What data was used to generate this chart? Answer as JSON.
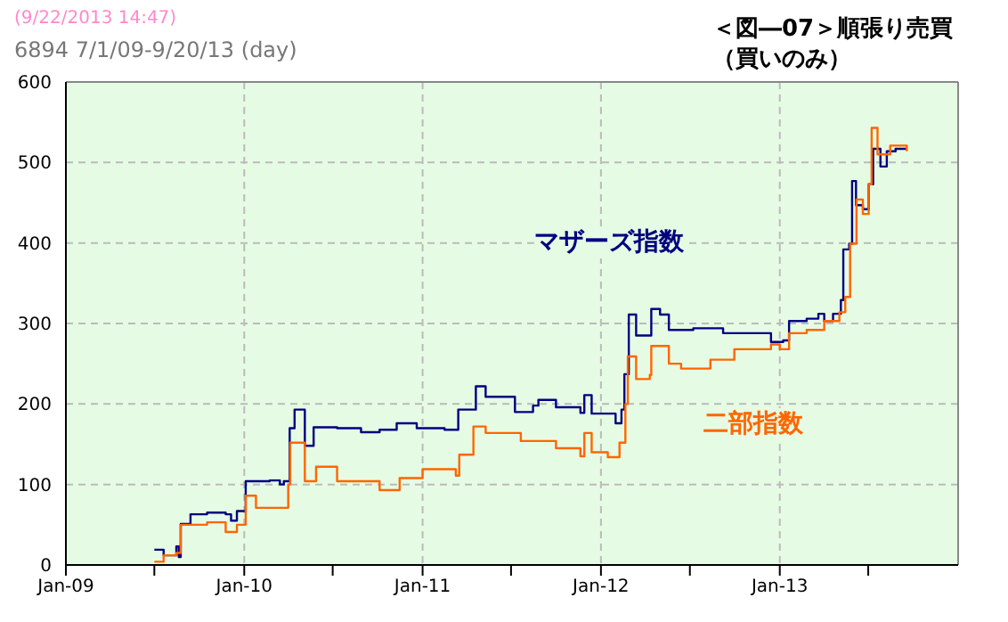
{
  "chart_data": {
    "type": "step",
    "title": "6894 7/1/09-9/20/13 (day)",
    "subtitle": "(9/22/2013 14:47)",
    "annotations": [
      "＜図―07＞順張り売買（買いのみ）"
    ],
    "series": [
      {
        "name": "マザーズ指数",
        "color": "#000080",
        "x": [
          "2009-07-01",
          "2009-07-20",
          "2009-08-15",
          "2009-08-20",
          "2009-08-24",
          "2009-09-13",
          "2009-10-17",
          "2009-11-24",
          "2009-12-05",
          "2009-12-17",
          "2010-01-04",
          "2010-02-22",
          "2010-03-15",
          "2010-03-23",
          "2010-04-04",
          "2010-04-14",
          "2010-05-05",
          "2010-05-23",
          "2010-07-10",
          "2010-08-28",
          "2010-10-05",
          "2010-11-09",
          "2010-12-20",
          "2011-02-15",
          "2011-03-15",
          "2011-04-14",
          "2011-04-20",
          "2011-05-10",
          "2011-07-09",
          "2011-08-15",
          "2011-08-26",
          "2011-10-01",
          "2011-11-20",
          "2011-11-28",
          "2011-12-13",
          "2012-01-31",
          "2012-02-12",
          "2012-02-18",
          "2012-02-27",
          "2012-03-13",
          "2012-04-13",
          "2012-05-01",
          "2012-05-19",
          "2012-07-08",
          "2012-09-07",
          "2012-12-14",
          "2013-01-08",
          "2013-01-20",
          "2013-02-25",
          "2013-03-21",
          "2013-04-02",
          "2013-04-20",
          "2013-05-06",
          "2013-05-11",
          "2013-05-23",
          "2013-05-29",
          "2013-06-06",
          "2013-06-20",
          "2013-07-02",
          "2013-07-11",
          "2013-07-26",
          "2013-08-08",
          "2013-08-26",
          "2013-09-18"
        ],
        "values": [
          19,
          12,
          23,
          10,
          51,
          63,
          65,
          63,
          55,
          67,
          104,
          105,
          100,
          104,
          170,
          193,
          148,
          171,
          170,
          165,
          168,
          176,
          170,
          168,
          193,
          193,
          222,
          209,
          190,
          198,
          205,
          196,
          189,
          211,
          188,
          176,
          193,
          237,
          311,
          285,
          318,
          311,
          292,
          294,
          288,
          277,
          279,
          303,
          306,
          312,
          303,
          312,
          329,
          392,
          399,
          477,
          447,
          442,
          473,
          517,
          495,
          514,
          517,
          517
        ]
      },
      {
        "name": "二部指数",
        "color": "#ff6600",
        "x": [
          "2009-07-01",
          "2009-07-20",
          "2009-08-15",
          "2009-08-24",
          "2009-10-17",
          "2009-11-24",
          "2009-12-17",
          "2010-01-04",
          "2010-01-25",
          "2010-03-20",
          "2010-04-01",
          "2010-04-05",
          "2010-05-05",
          "2010-05-28",
          "2010-07-10",
          "2010-10-05",
          "2010-11-15",
          "2011-01-01",
          "2011-03-10",
          "2011-03-17",
          "2011-04-15",
          "2011-05-10",
          "2011-07-21",
          "2011-10-01",
          "2011-11-20",
          "2011-11-28",
          "2011-12-13",
          "2012-01-15",
          "2012-02-08",
          "2012-02-20",
          "2012-02-25",
          "2012-03-13",
          "2012-04-10",
          "2012-04-13",
          "2012-05-19",
          "2012-06-13",
          "2012-08-12",
          "2012-09-30",
          "2012-12-14",
          "2013-01-01",
          "2013-01-20",
          "2013-02-25",
          "2013-04-02",
          "2013-05-03",
          "2013-05-15",
          "2013-05-25",
          "2013-06-07",
          "2013-06-20",
          "2013-07-02",
          "2013-07-08",
          "2013-07-20",
          "2013-08-15",
          "2013-09-18"
        ],
        "values": [
          4,
          12,
          15,
          50,
          53,
          41,
          50,
          86,
          71,
          71,
          100,
          152,
          104,
          122,
          104,
          93,
          108,
          119,
          111,
          137,
          172,
          164,
          154,
          145,
          135,
          164,
          140,
          134,
          152,
          200,
          259,
          231,
          236,
          272,
          250,
          244,
          255,
          268,
          274,
          268,
          288,
          292,
          303,
          314,
          333,
          399,
          454,
          436,
          473,
          543,
          510,
          521,
          514
        ]
      }
    ],
    "xlim": [
      "2009-01-01",
      "2014-01-01"
    ],
    "xticks": [
      {
        "value": "2009-01-01",
        "label": "Jan-09"
      },
      {
        "value": "2009-07-01",
        "label": null
      },
      {
        "value": "2010-01-01",
        "label": "Jan-10"
      },
      {
        "value": "2010-07-01",
        "label": null
      },
      {
        "value": "2011-01-01",
        "label": "Jan-11"
      },
      {
        "value": "2011-07-01",
        "label": null
      },
      {
        "value": "2012-01-01",
        "label": "Jan-12"
      },
      {
        "value": "2012-07-01",
        "label": null
      },
      {
        "value": "2013-01-01",
        "label": "Jan-13"
      },
      {
        "value": "2013-07-01",
        "label": null
      }
    ],
    "ylim": [
      0,
      600
    ],
    "yticks": [
      0,
      100,
      200,
      300,
      400,
      500,
      600
    ],
    "grid": true
  }
}
